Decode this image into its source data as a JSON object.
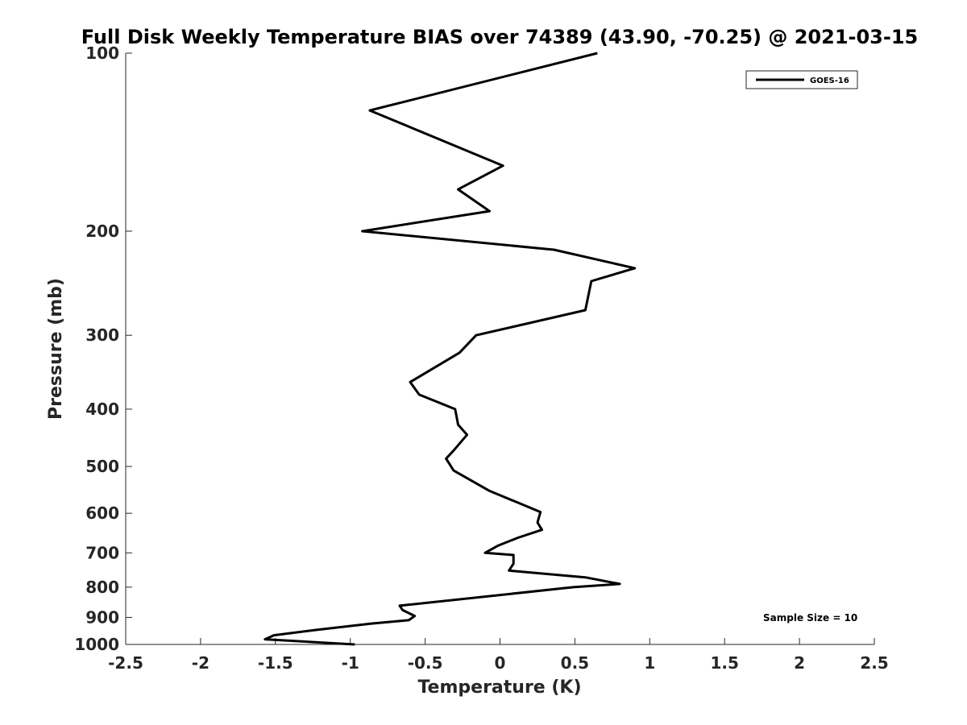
{
  "chart_data": {
    "type": "line",
    "title": "Full Disk Weekly Temperature BIAS over 74389 (43.90, -70.25) @ 2021-03-15",
    "xlabel": "Temperature (K)",
    "ylabel": "Pressure (mb)",
    "xlim": [
      -2.5,
      2.5
    ],
    "ylim": [
      1000,
      100
    ],
    "y_scale": "log",
    "y_reversed": true,
    "x_ticks": [
      -2.5,
      -2,
      -1.5,
      -1,
      -0.5,
      0,
      0.5,
      1,
      1.5,
      2,
      2.5
    ],
    "x_tick_labels": [
      "-2.5",
      "-2",
      "-1.5",
      "-1",
      "-0.5",
      "0",
      "0.5",
      "1",
      "1.5",
      "2",
      "2.5"
    ],
    "y_ticks": [
      100,
      200,
      300,
      400,
      500,
      600,
      700,
      800,
      900,
      1000
    ],
    "y_tick_labels": [
      "100",
      "200",
      "300",
      "400",
      "500",
      "600",
      "700",
      "800",
      "900",
      "1000"
    ],
    "grid": false,
    "legend_position": "top-right",
    "annotation": "Sample Size = 10",
    "series": [
      {
        "name": "GOES-16",
        "color": "#000000",
        "points": [
          {
            "x": 0.65,
            "y": 100
          },
          {
            "x": -0.87,
            "y": 125
          },
          {
            "x": 0.02,
            "y": 155
          },
          {
            "x": -0.28,
            "y": 170
          },
          {
            "x": -0.07,
            "y": 185
          },
          {
            "x": -0.92,
            "y": 200
          },
          {
            "x": 0.36,
            "y": 215
          },
          {
            "x": 0.9,
            "y": 231
          },
          {
            "x": 0.61,
            "y": 243
          },
          {
            "x": 0.57,
            "y": 272
          },
          {
            "x": -0.16,
            "y": 300
          },
          {
            "x": -0.27,
            "y": 321
          },
          {
            "x": -0.6,
            "y": 360
          },
          {
            "x": -0.54,
            "y": 378
          },
          {
            "x": -0.3,
            "y": 400
          },
          {
            "x": -0.28,
            "y": 425
          },
          {
            "x": -0.22,
            "y": 442
          },
          {
            "x": -0.31,
            "y": 470
          },
          {
            "x": -0.36,
            "y": 485
          },
          {
            "x": -0.31,
            "y": 508
          },
          {
            "x": -0.07,
            "y": 550
          },
          {
            "x": 0.27,
            "y": 597
          },
          {
            "x": 0.25,
            "y": 622
          },
          {
            "x": 0.28,
            "y": 640
          },
          {
            "x": 0.12,
            "y": 660
          },
          {
            "x": -0.01,
            "y": 680
          },
          {
            "x": -0.1,
            "y": 700
          },
          {
            "x": 0.09,
            "y": 706
          },
          {
            "x": 0.09,
            "y": 730
          },
          {
            "x": 0.06,
            "y": 750
          },
          {
            "x": 0.57,
            "y": 770
          },
          {
            "x": 0.8,
            "y": 790
          },
          {
            "x": 0.49,
            "y": 800
          },
          {
            "x": -0.67,
            "y": 860
          },
          {
            "x": -0.65,
            "y": 875
          },
          {
            "x": -0.57,
            "y": 895
          },
          {
            "x": -0.61,
            "y": 910
          },
          {
            "x": -0.86,
            "y": 922
          },
          {
            "x": -1.23,
            "y": 945
          },
          {
            "x": -1.51,
            "y": 965
          },
          {
            "x": -1.57,
            "y": 980
          },
          {
            "x": -0.97,
            "y": 1000
          }
        ]
      }
    ]
  }
}
